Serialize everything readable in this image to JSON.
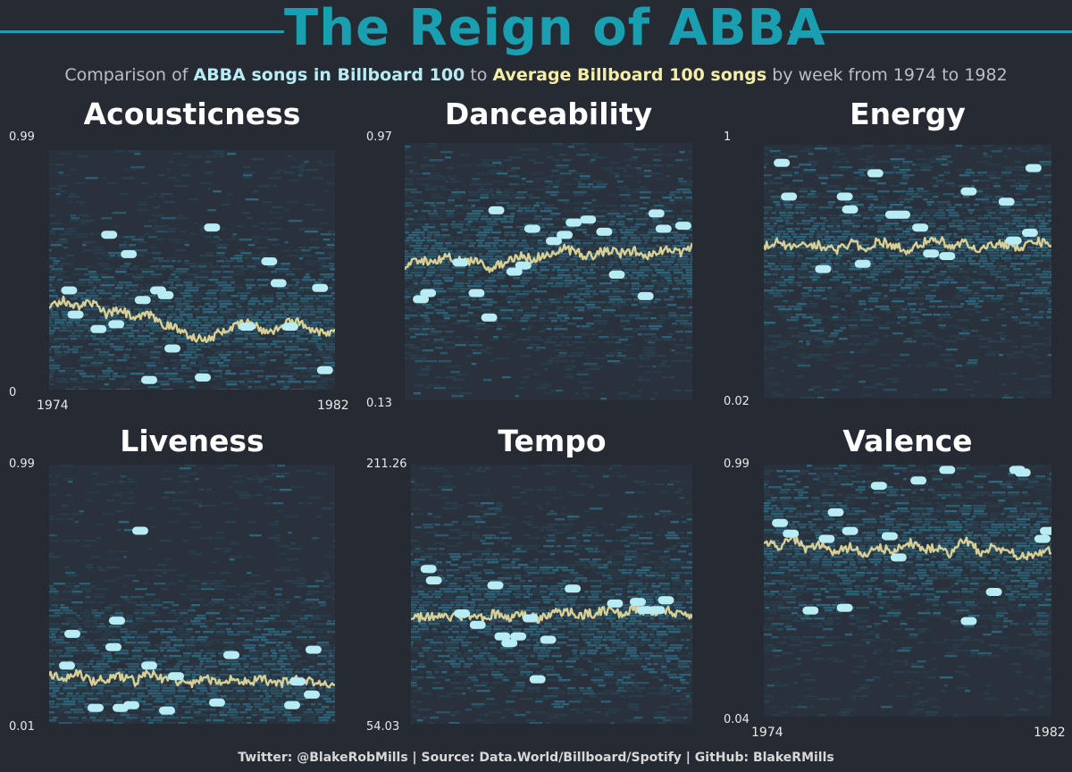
{
  "title": "The Reign of ABBA",
  "subtitle": {
    "prefix": "Comparison of",
    "abba": "ABBA songs in Billboard 100",
    "middle": "to",
    "avg": "Average Billboard 100 songs",
    "suffix": "by week from 1974 to 1982"
  },
  "footer": "Twitter: @BlakeRobMills | Source: Data.World/Billboard/Spotify | GitHub: BlakeRMills",
  "colors": {
    "background": "#262a33",
    "title": "#1a9fb1",
    "abba": "#b8ecf4",
    "average": "#d9cf95",
    "density_dark": "#2b4352",
    "density_light": "#2f6d85"
  },
  "chart_data": [
    {
      "type": "scatter",
      "title": "Acousticness",
      "ylim": [
        0,
        0.99
      ],
      "ymin_label": "0",
      "ymax_label": "0.99",
      "xlim": [
        1974,
        1982
      ],
      "xmin_label": "1974",
      "xmax_label": "1982",
      "show_years": true,
      "abba_points": [
        {
          "x": 1974.56,
          "y": 0.41
        },
        {
          "x": 1974.74,
          "y": 0.31
        },
        {
          "x": 1975.38,
          "y": 0.25
        },
        {
          "x": 1975.68,
          "y": 0.64
        },
        {
          "x": 1975.88,
          "y": 0.27
        },
        {
          "x": 1976.23,
          "y": 0.56
        },
        {
          "x": 1976.62,
          "y": 0.37
        },
        {
          "x": 1976.8,
          "y": 0.04
        },
        {
          "x": 1977.05,
          "y": 0.41
        },
        {
          "x": 1977.26,
          "y": 0.39
        },
        {
          "x": 1977.45,
          "y": 0.17
        },
        {
          "x": 1978.3,
          "y": 0.05
        },
        {
          "x": 1978.56,
          "y": 0.67
        },
        {
          "x": 1979.54,
          "y": 0.26
        },
        {
          "x": 1980.16,
          "y": 0.53
        },
        {
          "x": 1980.42,
          "y": 0.44
        },
        {
          "x": 1980.75,
          "y": 0.26
        },
        {
          "x": 1981.58,
          "y": 0.42
        },
        {
          "x": 1981.72,
          "y": 0.08
        }
      ],
      "avg_line": [
        {
          "x": 1974.0,
          "y": 0.35
        },
        {
          "x": 1974.4,
          "y": 0.37
        },
        {
          "x": 1974.8,
          "y": 0.34
        },
        {
          "x": 1975.2,
          "y": 0.36
        },
        {
          "x": 1975.6,
          "y": 0.31
        },
        {
          "x": 1976.0,
          "y": 0.33
        },
        {
          "x": 1976.4,
          "y": 0.29
        },
        {
          "x": 1976.8,
          "y": 0.31
        },
        {
          "x": 1977.2,
          "y": 0.27
        },
        {
          "x": 1977.6,
          "y": 0.25
        },
        {
          "x": 1978.0,
          "y": 0.22
        },
        {
          "x": 1978.4,
          "y": 0.2
        },
        {
          "x": 1978.8,
          "y": 0.24
        },
        {
          "x": 1979.2,
          "y": 0.26
        },
        {
          "x": 1979.6,
          "y": 0.28
        },
        {
          "x": 1980.0,
          "y": 0.24
        },
        {
          "x": 1980.4,
          "y": 0.25
        },
        {
          "x": 1980.8,
          "y": 0.29
        },
        {
          "x": 1981.2,
          "y": 0.26
        },
        {
          "x": 1981.6,
          "y": 0.24
        },
        {
          "x": 1982.0,
          "y": 0.24
        }
      ]
    },
    {
      "type": "scatter",
      "title": "Danceability",
      "ylim": [
        0.13,
        0.97
      ],
      "ymin_label": "0.13",
      "ymax_label": "0.97",
      "xlim": [
        1974,
        1982
      ],
      "show_years": false,
      "abba_points": [
        {
          "x": 1974.45,
          "y": 0.46
        },
        {
          "x": 1974.65,
          "y": 0.48
        },
        {
          "x": 1975.55,
          "y": 0.58
        },
        {
          "x": 1976.0,
          "y": 0.48
        },
        {
          "x": 1976.35,
          "y": 0.4
        },
        {
          "x": 1976.55,
          "y": 0.75
        },
        {
          "x": 1977.05,
          "y": 0.55
        },
        {
          "x": 1977.3,
          "y": 0.57
        },
        {
          "x": 1977.55,
          "y": 0.69
        },
        {
          "x": 1978.15,
          "y": 0.65
        },
        {
          "x": 1978.45,
          "y": 0.67
        },
        {
          "x": 1978.7,
          "y": 0.71
        },
        {
          "x": 1979.1,
          "y": 0.72
        },
        {
          "x": 1979.55,
          "y": 0.68
        },
        {
          "x": 1979.9,
          "y": 0.54
        },
        {
          "x": 1980.7,
          "y": 0.47
        },
        {
          "x": 1981.0,
          "y": 0.74
        },
        {
          "x": 1981.2,
          "y": 0.69
        },
        {
          "x": 1981.75,
          "y": 0.7
        }
      ],
      "avg_line": [
        {
          "x": 1974.0,
          "y": 0.57
        },
        {
          "x": 1974.4,
          "y": 0.59
        },
        {
          "x": 1974.8,
          "y": 0.58
        },
        {
          "x": 1975.2,
          "y": 0.6
        },
        {
          "x": 1975.6,
          "y": 0.58
        },
        {
          "x": 1976.0,
          "y": 0.59
        },
        {
          "x": 1976.4,
          "y": 0.56
        },
        {
          "x": 1976.8,
          "y": 0.58
        },
        {
          "x": 1977.2,
          "y": 0.6
        },
        {
          "x": 1977.6,
          "y": 0.59
        },
        {
          "x": 1978.0,
          "y": 0.61
        },
        {
          "x": 1978.4,
          "y": 0.63
        },
        {
          "x": 1978.8,
          "y": 0.61
        },
        {
          "x": 1979.2,
          "y": 0.6
        },
        {
          "x": 1979.6,
          "y": 0.62
        },
        {
          "x": 1980.0,
          "y": 0.61
        },
        {
          "x": 1980.4,
          "y": 0.62
        },
        {
          "x": 1980.8,
          "y": 0.6
        },
        {
          "x": 1981.2,
          "y": 0.62
        },
        {
          "x": 1981.6,
          "y": 0.61
        },
        {
          "x": 1982.0,
          "y": 0.63
        }
      ]
    },
    {
      "type": "scatter",
      "title": "Energy",
      "ylim": [
        0.02,
        1
      ],
      "ymin_label": "0.02",
      "ymax_label": "1",
      "xlim": [
        1974,
        1982
      ],
      "show_years": false,
      "abba_points": [
        {
          "x": 1974.5,
          "y": 0.93
        },
        {
          "x": 1974.7,
          "y": 0.8
        },
        {
          "x": 1975.65,
          "y": 0.52
        },
        {
          "x": 1976.25,
          "y": 0.8
        },
        {
          "x": 1976.4,
          "y": 0.75
        },
        {
          "x": 1976.75,
          "y": 0.54
        },
        {
          "x": 1977.1,
          "y": 0.89
        },
        {
          "x": 1977.6,
          "y": 0.73
        },
        {
          "x": 1977.85,
          "y": 0.73
        },
        {
          "x": 1978.35,
          "y": 0.68
        },
        {
          "x": 1978.65,
          "y": 0.58
        },
        {
          "x": 1979.1,
          "y": 0.57
        },
        {
          "x": 1979.7,
          "y": 0.82
        },
        {
          "x": 1980.75,
          "y": 0.78
        },
        {
          "x": 1980.95,
          "y": 0.63
        },
        {
          "x": 1981.4,
          "y": 0.66
        },
        {
          "x": 1981.5,
          "y": 0.91
        }
      ],
      "avg_line": [
        {
          "x": 1974.0,
          "y": 0.61
        },
        {
          "x": 1974.4,
          "y": 0.63
        },
        {
          "x": 1974.8,
          "y": 0.6
        },
        {
          "x": 1975.2,
          "y": 0.62
        },
        {
          "x": 1975.6,
          "y": 0.61
        },
        {
          "x": 1976.0,
          "y": 0.59
        },
        {
          "x": 1976.4,
          "y": 0.62
        },
        {
          "x": 1976.8,
          "y": 0.6
        },
        {
          "x": 1977.2,
          "y": 0.63
        },
        {
          "x": 1977.6,
          "y": 0.61
        },
        {
          "x": 1978.0,
          "y": 0.59
        },
        {
          "x": 1978.4,
          "y": 0.62
        },
        {
          "x": 1978.8,
          "y": 0.64
        },
        {
          "x": 1979.2,
          "y": 0.61
        },
        {
          "x": 1979.6,
          "y": 0.62
        },
        {
          "x": 1980.0,
          "y": 0.6
        },
        {
          "x": 1980.4,
          "y": 0.62
        },
        {
          "x": 1980.8,
          "y": 0.61
        },
        {
          "x": 1981.2,
          "y": 0.6
        },
        {
          "x": 1981.6,
          "y": 0.63
        },
        {
          "x": 1982.0,
          "y": 0.61
        }
      ]
    },
    {
      "type": "scatter",
      "title": "Liveness",
      "ylim": [
        0.01,
        0.99
      ],
      "ymin_label": "0.01",
      "ymax_label": "0.99",
      "xlim": [
        1974,
        1982
      ],
      "show_years": false,
      "abba_points": [
        {
          "x": 1974.5,
          "y": 0.23
        },
        {
          "x": 1974.65,
          "y": 0.35
        },
        {
          "x": 1975.3,
          "y": 0.07
        },
        {
          "x": 1975.8,
          "y": 0.3
        },
        {
          "x": 1975.9,
          "y": 0.4
        },
        {
          "x": 1976.0,
          "y": 0.07
        },
        {
          "x": 1976.3,
          "y": 0.08
        },
        {
          "x": 1976.55,
          "y": 0.74
        },
        {
          "x": 1976.8,
          "y": 0.23
        },
        {
          "x": 1977.3,
          "y": 0.06
        },
        {
          "x": 1977.55,
          "y": 0.19
        },
        {
          "x": 1978.7,
          "y": 0.09
        },
        {
          "x": 1979.1,
          "y": 0.27
        },
        {
          "x": 1980.8,
          "y": 0.08
        },
        {
          "x": 1980.95,
          "y": 0.17
        },
        {
          "x": 1981.35,
          "y": 0.12
        },
        {
          "x": 1981.4,
          "y": 0.29
        }
      ],
      "avg_line": [
        {
          "x": 1974.0,
          "y": 0.19
        },
        {
          "x": 1974.4,
          "y": 0.18
        },
        {
          "x": 1974.8,
          "y": 0.2
        },
        {
          "x": 1975.2,
          "y": 0.17
        },
        {
          "x": 1975.6,
          "y": 0.18
        },
        {
          "x": 1976.0,
          "y": 0.19
        },
        {
          "x": 1976.4,
          "y": 0.17
        },
        {
          "x": 1976.8,
          "y": 0.2
        },
        {
          "x": 1977.2,
          "y": 0.18
        },
        {
          "x": 1977.6,
          "y": 0.17
        },
        {
          "x": 1978.0,
          "y": 0.16
        },
        {
          "x": 1978.4,
          "y": 0.18
        },
        {
          "x": 1978.8,
          "y": 0.17
        },
        {
          "x": 1979.2,
          "y": 0.18
        },
        {
          "x": 1979.6,
          "y": 0.17
        },
        {
          "x": 1980.0,
          "y": 0.18
        },
        {
          "x": 1980.4,
          "y": 0.16
        },
        {
          "x": 1980.8,
          "y": 0.18
        },
        {
          "x": 1981.2,
          "y": 0.17
        },
        {
          "x": 1981.6,
          "y": 0.16
        },
        {
          "x": 1982.0,
          "y": 0.15
        }
      ]
    },
    {
      "type": "scatter",
      "title": "Tempo",
      "ylim": [
        54.03,
        211.26
      ],
      "ymin_label": "54.03",
      "ymax_label": "211.26",
      "xlim": [
        1974,
        1982
      ],
      "show_years": false,
      "abba_points": [
        {
          "x": 1974.5,
          "y": 148
        },
        {
          "x": 1974.65,
          "y": 141
        },
        {
          "x": 1975.45,
          "y": 121
        },
        {
          "x": 1975.9,
          "y": 114
        },
        {
          "x": 1976.4,
          "y": 138
        },
        {
          "x": 1976.6,
          "y": 107
        },
        {
          "x": 1976.8,
          "y": 103
        },
        {
          "x": 1977.05,
          "y": 107
        },
        {
          "x": 1977.4,
          "y": 118
        },
        {
          "x": 1977.6,
          "y": 81
        },
        {
          "x": 1977.9,
          "y": 105
        },
        {
          "x": 1978.6,
          "y": 136
        },
        {
          "x": 1979.8,
          "y": 127
        },
        {
          "x": 1980.45,
          "y": 128
        },
        {
          "x": 1980.65,
          "y": 123
        },
        {
          "x": 1981.0,
          "y": 123
        },
        {
          "x": 1981.25,
          "y": 129
        }
      ],
      "avg_line": [
        {
          "x": 1974.0,
          "y": 120
        },
        {
          "x": 1974.4,
          "y": 118
        },
        {
          "x": 1974.8,
          "y": 121
        },
        {
          "x": 1975.2,
          "y": 119
        },
        {
          "x": 1975.6,
          "y": 120
        },
        {
          "x": 1976.0,
          "y": 118
        },
        {
          "x": 1976.4,
          "y": 121
        },
        {
          "x": 1976.8,
          "y": 119
        },
        {
          "x": 1977.2,
          "y": 120
        },
        {
          "x": 1977.6,
          "y": 118
        },
        {
          "x": 1978.0,
          "y": 121
        },
        {
          "x": 1978.4,
          "y": 122
        },
        {
          "x": 1978.8,
          "y": 120
        },
        {
          "x": 1979.2,
          "y": 121
        },
        {
          "x": 1979.6,
          "y": 123
        },
        {
          "x": 1980.0,
          "y": 121
        },
        {
          "x": 1980.4,
          "y": 124
        },
        {
          "x": 1980.8,
          "y": 122
        },
        {
          "x": 1981.2,
          "y": 123
        },
        {
          "x": 1981.6,
          "y": 121
        },
        {
          "x": 1982.0,
          "y": 119
        }
      ]
    },
    {
      "type": "scatter",
      "title": "Valence",
      "ylim": [
        0.04,
        0.99
      ],
      "ymin_label": "0.04",
      "ymax_label": "0.99",
      "xlim": [
        1974,
        1982
      ],
      "xmin_label": "1974",
      "xmax_label": "1982",
      "show_years": true,
      "abba_points": [
        {
          "x": 1974.45,
          "y": 0.77
        },
        {
          "x": 1974.75,
          "y": 0.73
        },
        {
          "x": 1975.3,
          "y": 0.44
        },
        {
          "x": 1975.75,
          "y": 0.71
        },
        {
          "x": 1976.0,
          "y": 0.81
        },
        {
          "x": 1976.25,
          "y": 0.45
        },
        {
          "x": 1976.4,
          "y": 0.74
        },
        {
          "x": 1977.2,
          "y": 0.91
        },
        {
          "x": 1977.5,
          "y": 0.72
        },
        {
          "x": 1977.75,
          "y": 0.64
        },
        {
          "x": 1978.3,
          "y": 0.93
        },
        {
          "x": 1979.1,
          "y": 0.97
        },
        {
          "x": 1979.7,
          "y": 0.4
        },
        {
          "x": 1980.4,
          "y": 0.51
        },
        {
          "x": 1981.05,
          "y": 0.97
        },
        {
          "x": 1981.2,
          "y": 0.96
        },
        {
          "x": 1981.75,
          "y": 0.71
        },
        {
          "x": 1981.9,
          "y": 0.74
        }
      ],
      "avg_line": [
        {
          "x": 1974.0,
          "y": 0.7
        },
        {
          "x": 1974.4,
          "y": 0.68
        },
        {
          "x": 1974.8,
          "y": 0.71
        },
        {
          "x": 1975.2,
          "y": 0.67
        },
        {
          "x": 1975.6,
          "y": 0.69
        },
        {
          "x": 1976.0,
          "y": 0.66
        },
        {
          "x": 1976.4,
          "y": 0.68
        },
        {
          "x": 1976.8,
          "y": 0.65
        },
        {
          "x": 1977.2,
          "y": 0.68
        },
        {
          "x": 1977.6,
          "y": 0.66
        },
        {
          "x": 1978.0,
          "y": 0.7
        },
        {
          "x": 1978.4,
          "y": 0.67
        },
        {
          "x": 1978.8,
          "y": 0.68
        },
        {
          "x": 1979.2,
          "y": 0.65
        },
        {
          "x": 1979.6,
          "y": 0.71
        },
        {
          "x": 1980.0,
          "y": 0.66
        },
        {
          "x": 1980.4,
          "y": 0.68
        },
        {
          "x": 1980.8,
          "y": 0.66
        },
        {
          "x": 1981.2,
          "y": 0.64
        },
        {
          "x": 1981.6,
          "y": 0.66
        },
        {
          "x": 1982.0,
          "y": 0.67
        }
      ]
    }
  ]
}
